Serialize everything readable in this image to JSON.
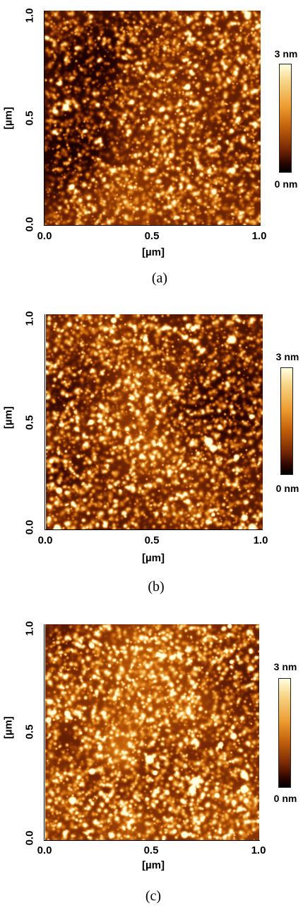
{
  "panels": [
    {
      "id": "a",
      "caption": "(a)",
      "y_axis_title": "[µm]",
      "x_axis_title": "[µm]",
      "y_ticks": [
        "0.0",
        "0.5",
        "1.0"
      ],
      "x_ticks": [
        "0.0",
        "0.5",
        "1.0"
      ],
      "colorbar": {
        "top": "3 nm",
        "bottom": "0 nm"
      }
    },
    {
      "id": "b",
      "caption": "(b)",
      "y_axis_title": "[µm]",
      "x_axis_title": "[µm]",
      "y_ticks": [
        "0.0",
        "0.5",
        "1.0"
      ],
      "x_ticks": [
        "0.0",
        "0.5",
        "1.0"
      ],
      "colorbar": {
        "top": "3 nm",
        "bottom": "0 nm"
      }
    },
    {
      "id": "c",
      "caption": "(c)",
      "y_axis_title": "[µm]",
      "x_axis_title": "[µm]",
      "y_ticks": [
        "0.0",
        "0.5",
        "1.0"
      ],
      "x_ticks": [
        "0.0",
        "0.5",
        "1.0"
      ],
      "colorbar": {
        "top": "3 nm",
        "bottom": "0 nm"
      }
    }
  ],
  "colormap": [
    "#000000",
    "#2a0500",
    "#7a2a04",
    "#c2600b",
    "#ec9a2d",
    "#f7d78a",
    "#ffffe0"
  ]
}
